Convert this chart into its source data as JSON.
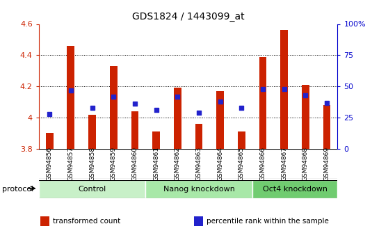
{
  "title": "GDS1824 / 1443099_at",
  "samples": [
    "GSM94856",
    "GSM94857",
    "GSM94858",
    "GSM94859",
    "GSM94860",
    "GSM94861",
    "GSM94862",
    "GSM94863",
    "GSM94864",
    "GSM94865",
    "GSM94866",
    "GSM94867",
    "GSM94868",
    "GSM94869"
  ],
  "transformed_counts": [
    3.9,
    4.46,
    4.02,
    4.33,
    4.04,
    3.91,
    4.19,
    3.96,
    4.17,
    3.91,
    4.39,
    4.56,
    4.21,
    4.08
  ],
  "percentile_ranks": [
    28,
    47,
    33,
    42,
    36,
    31,
    42,
    29,
    38,
    33,
    48,
    48,
    43,
    37
  ],
  "groups": [
    {
      "label": "Control",
      "start": 0,
      "end": 5,
      "color": "#c8f0c8"
    },
    {
      "label": "Nanog knockdown",
      "start": 5,
      "end": 10,
      "color": "#a8e8a8"
    },
    {
      "label": "Oct4 knockdown",
      "start": 10,
      "end": 14,
      "color": "#70cc70"
    }
  ],
  "bar_color": "#cc2200",
  "dot_color": "#2222cc",
  "ylim_left": [
    3.8,
    4.6
  ],
  "ylim_right": [
    0,
    100
  ],
  "yticks_left": [
    3.8,
    4.0,
    4.2,
    4.4,
    4.6
  ],
  "ytick_labels_left": [
    "3.8",
    "4",
    "4.2",
    "4.4",
    "4.6"
  ],
  "yticks_right": [
    0,
    25,
    50,
    75,
    100
  ],
  "ytick_labels_right": [
    "0",
    "25",
    "50",
    "75",
    "100%"
  ],
  "legend_items": [
    {
      "color": "#cc2200",
      "label": "transformed count"
    },
    {
      "color": "#2222cc",
      "label": "percentile rank within the sample"
    }
  ]
}
